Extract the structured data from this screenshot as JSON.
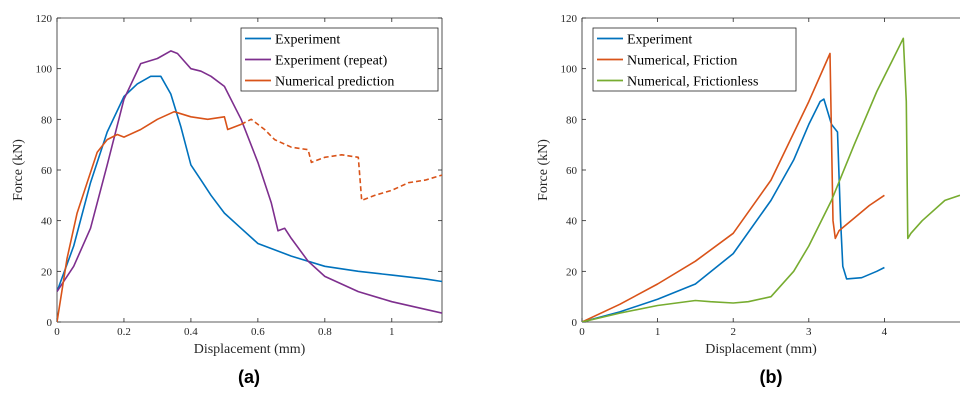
{
  "chart_data": [
    {
      "type": "line",
      "panel_label": "(a)",
      "xlabel": "Displacement (mm)",
      "ylabel": "Force (kN)",
      "xlim": [
        0,
        1.15
      ],
      "ylim": [
        0,
        120
      ],
      "xticks": [
        0,
        0.2,
        0.4,
        0.6,
        0.8,
        1
      ],
      "xtick_labels": [
        "0",
        "0.2",
        "0.4",
        "0.6",
        "0.8",
        "1"
      ],
      "yticks": [
        0,
        20,
        40,
        60,
        80,
        100,
        120
      ],
      "ytick_labels": [
        "0",
        "20",
        "40",
        "60",
        "80",
        "100",
        "120"
      ],
      "grid": false,
      "legend_position": "top-right",
      "series": [
        {
          "name": "Experiment",
          "color": "#0072BD",
          "style": "solid",
          "x": [
            0,
            0.05,
            0.1,
            0.15,
            0.2,
            0.24,
            0.28,
            0.31,
            0.34,
            0.37,
            0.4,
            0.43,
            0.46,
            0.5,
            0.55,
            0.6,
            0.7,
            0.8,
            0.9,
            1.0,
            1.1,
            1.15
          ],
          "y": [
            12,
            30,
            55,
            75,
            89,
            94,
            97,
            97,
            90,
            77,
            62,
            56,
            50,
            43,
            37,
            31,
            26,
            22,
            20,
            18.5,
            17,
            16
          ]
        },
        {
          "name": "Experiment (repeat)",
          "color": "#7E2F8E",
          "style": "solid",
          "x": [
            0,
            0.05,
            0.1,
            0.15,
            0.2,
            0.25,
            0.3,
            0.34,
            0.36,
            0.38,
            0.4,
            0.43,
            0.46,
            0.5,
            0.55,
            0.6,
            0.64,
            0.66,
            0.68,
            0.7,
            0.75,
            0.8,
            0.9,
            1.0,
            1.1,
            1.15
          ],
          "y": [
            12,
            22,
            37,
            62,
            88,
            102,
            104,
            107,
            106,
            103,
            100,
            99,
            97,
            93,
            80,
            63,
            47,
            36,
            37,
            33,
            24,
            18,
            12,
            8,
            5,
            3.5
          ]
        },
        {
          "name": "Numerical prediction",
          "color": "#D95319",
          "style": "solid",
          "x": [
            0,
            0.03,
            0.06,
            0.09,
            0.12,
            0.15,
            0.18,
            0.2,
            0.25,
            0.3,
            0.35,
            0.4,
            0.45,
            0.5,
            0.51,
            0.55
          ],
          "y": [
            0,
            25,
            43,
            55,
            67,
            72,
            74,
            73,
            76,
            80,
            83,
            81,
            80,
            81,
            76,
            78
          ]
        },
        {
          "name": "",
          "color": "#D95319",
          "style": "dashed",
          "x": [
            0.55,
            0.58,
            0.62,
            0.65,
            0.7,
            0.75,
            0.76,
            0.8,
            0.85,
            0.9,
            0.91,
            0.95,
            1.0,
            1.05,
            1.1,
            1.15
          ],
          "y": [
            78,
            80,
            76,
            72,
            69,
            68,
            63,
            65,
            66,
            65,
            48,
            50,
            52,
            55,
            56,
            58
          ]
        }
      ]
    },
    {
      "type": "line",
      "panel_label": "(b)",
      "xlabel": "Displacement (mm)",
      "ylabel": "Force (kN)",
      "xlim": [
        0,
        5
      ],
      "ylim": [
        0,
        120
      ],
      "xticks": [
        0,
        1,
        2,
        3,
        4
      ],
      "xtick_labels": [
        "0",
        "1",
        "2",
        "3",
        "4"
      ],
      "yticks": [
        0,
        20,
        40,
        60,
        80,
        100,
        120
      ],
      "ytick_labels": [
        "0",
        "20",
        "40",
        "60",
        "80",
        "100",
        "120"
      ],
      "grid": false,
      "legend_position": "top-left",
      "series": [
        {
          "name": "Experiment",
          "color": "#0072BD",
          "style": "solid",
          "x": [
            0,
            0.5,
            1.0,
            1.5,
            2.0,
            2.5,
            2.8,
            3.0,
            3.15,
            3.2,
            3.3,
            3.38,
            3.42,
            3.45,
            3.5,
            3.7,
            3.9,
            4.0
          ],
          "y": [
            0,
            4,
            9,
            15,
            27,
            48,
            64,
            78,
            87,
            88,
            78,
            75,
            40,
            22,
            17,
            17.5,
            20,
            21.5
          ]
        },
        {
          "name": "Numerical, Friction",
          "color": "#D95319",
          "style": "solid",
          "x": [
            0,
            0.5,
            1.0,
            1.5,
            2.0,
            2.5,
            3.0,
            3.28,
            3.32,
            3.35,
            3.4,
            3.6,
            3.8,
            4.0
          ],
          "y": [
            0,
            7,
            15,
            24,
            35,
            56,
            87,
            106,
            40,
            33,
            36,
            41,
            46,
            50
          ]
        },
        {
          "name": "Numerical, Frictionless",
          "color": "#77AC30",
          "style": "solid",
          "x": [
            0,
            0.5,
            1.0,
            1.5,
            1.7,
            2.0,
            2.2,
            2.5,
            2.8,
            3.0,
            3.3,
            3.6,
            3.9,
            4.1,
            4.25,
            4.29,
            4.31,
            4.35,
            4.5,
            4.8,
            5.0
          ],
          "y": [
            0,
            3.5,
            6.5,
            8.5,
            8,
            7.5,
            8,
            10,
            20,
            30,
            48,
            70,
            91,
            103,
            112,
            87,
            33,
            35,
            40,
            48,
            50
          ]
        }
      ]
    }
  ]
}
